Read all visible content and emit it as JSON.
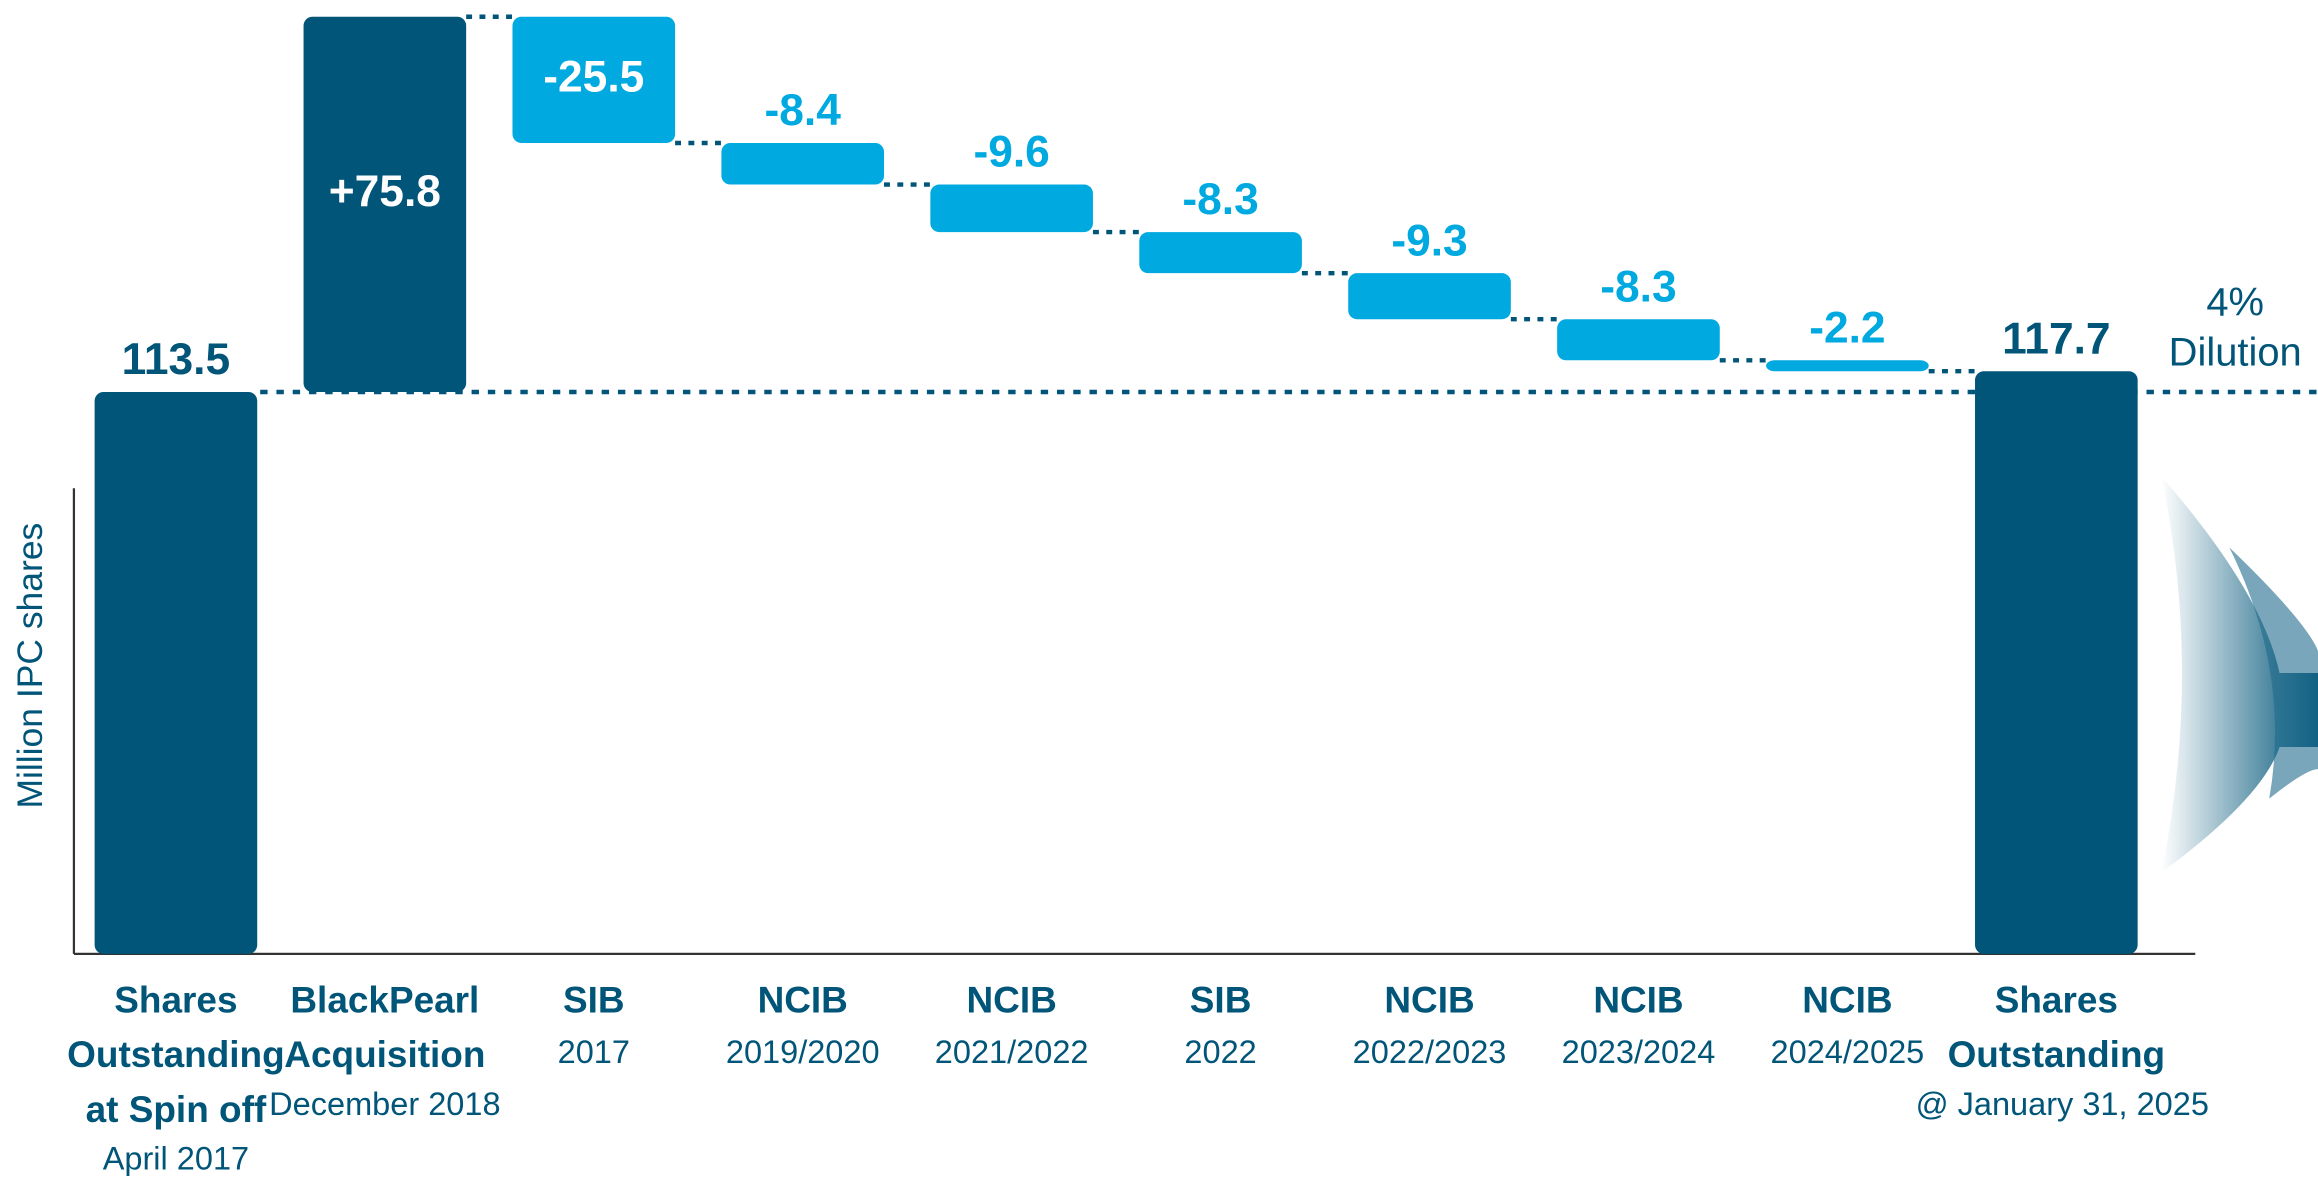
{
  "chart_data": {
    "type": "waterfall",
    "y_axis_label": "Million IPC shares",
    "categories": [
      [
        "Shares",
        "Outstanding",
        "at Spin off"
      ],
      [
        "BlackPearl",
        "Acquisition"
      ],
      [
        "SIB"
      ],
      [
        "NCIB"
      ],
      [
        "NCIB"
      ],
      [
        "SIB"
      ],
      [
        "NCIB"
      ],
      [
        "NCIB"
      ],
      [
        "NCIB"
      ],
      [
        "Shares",
        "Outstanding"
      ]
    ],
    "category_subtitles": [
      "April 2017",
      "December 2018",
      "2017",
      "2019/2020",
      "2021/2022",
      "2022",
      "2022/2023",
      "2023/2024",
      "2024/2025",
      "@ January 31, 2025"
    ],
    "kinds": [
      "total",
      "delta",
      "delta",
      "delta",
      "delta",
      "delta",
      "delta",
      "delta",
      "delta",
      "total"
    ],
    "values": [
      113.5,
      75.8,
      -25.5,
      -8.4,
      -9.6,
      -8.3,
      -9.3,
      -8.3,
      -2.2,
      117.7
    ],
    "value_labels": [
      "113.5",
      "+75.8",
      "-25.5",
      "-8.4",
      "-9.6",
      "-8.3",
      "-9.3",
      "-8.3",
      "-2.2",
      "117.7"
    ],
    "total_color": "#005578",
    "delta_colors": {
      "positive": "#005578",
      "negative": "#00a9e0"
    },
    "annotation": [
      "4%",
      "Dilution"
    ],
    "ylim": [
      0,
      192.6
    ]
  }
}
